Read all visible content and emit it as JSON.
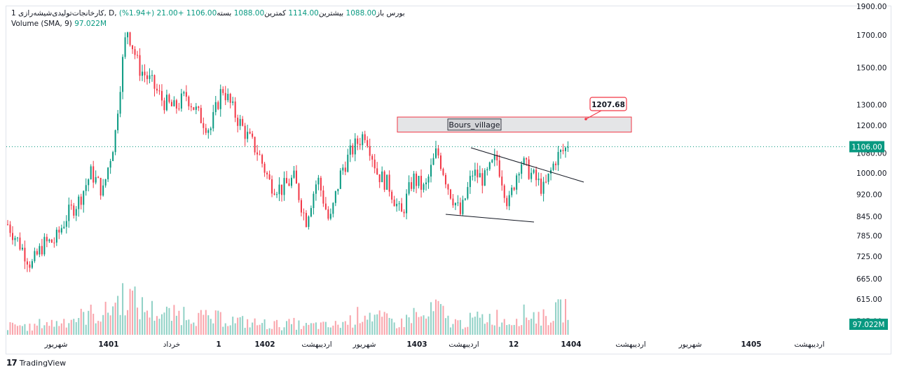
{
  "header": {
    "title": "1 کارخانجات‌تولیدی‌شیشه‌رازی‌, D, بورس",
    "open_label": "باز",
    "open": "1088.00",
    "high_label": "بیشترین",
    "high": "1114.00",
    "low_label": "کمترین",
    "low": "1088.00",
    "close_label": "بسته",
    "close": "1106.00",
    "change": "+21.00",
    "change_pct": "(+1.94%)",
    "volume_label": "Volume",
    "volume_params": "(SMA, 9)",
    "volume_value": "97.022M"
  },
  "chart_data": {
    "type": "candlestick",
    "scale": "log",
    "ylim": [
      530,
      1900
    ],
    "y_ticks": [
      565,
      615,
      665,
      725,
      785,
      845,
      920,
      1000,
      1080,
      1200,
      1300,
      1500,
      1700,
      1900
    ],
    "y_tick_labels": [
      "565.00",
      "615.00",
      "665.00",
      "725.00",
      "785.00",
      "845.00",
      "920.00",
      "1000.00",
      "1080.00",
      "1200.00",
      "1300.00",
      "1500.00",
      "1700.00",
      "1900.00"
    ],
    "x_labels": [
      "شهریور",
      "1401",
      "خرداد",
      "1",
      "1402",
      "اردیبهشت",
      "شهریور",
      "1403",
      "اردیبهشت",
      "12",
      "1404",
      "اردیبهشت",
      "شهریور",
      "1405",
      "اردیبهشت"
    ],
    "price_path": [
      820,
      760,
      700,
      760,
      770,
      850,
      900,
      1000,
      930,
      1150,
      1750,
      1500,
      1420,
      1320,
      1280,
      1350,
      1250,
      1180,
      1390,
      1260,
      1160,
      1080,
      960,
      940,
      980,
      830,
      980,
      820,
      1010,
      1100,
      1170,
      1000,
      950,
      845,
      980,
      935,
      1090,
      940,
      850,
      1000,
      975,
      1060,
      880,
      1050,
      990,
      935,
      1060,
      1106
    ],
    "volume_path": [
      12,
      14,
      10,
      18,
      16,
      22,
      25,
      30,
      28,
      45,
      60,
      40,
      35,
      30,
      28,
      32,
      26,
      22,
      24,
      20,
      18,
      16,
      15,
      14,
      16,
      12,
      14,
      12,
      16,
      22,
      35,
      24,
      20,
      16,
      30,
      22,
      40,
      20,
      16,
      22,
      24,
      26,
      18,
      28,
      30,
      24,
      32,
      40
    ],
    "series": [
      {
        "name": "Volume",
        "last": "97.022M"
      }
    ],
    "last_price": "1106.00",
    "annotations": {
      "zone_label": "Bours_village",
      "callout_value": "1207.68",
      "zone_low": 1170,
      "zone_high": 1240
    },
    "colors": {
      "up": "#089981",
      "down": "#f23645",
      "zone": "#f23645"
    }
  },
  "footer": {
    "brand": "TradingView"
  }
}
